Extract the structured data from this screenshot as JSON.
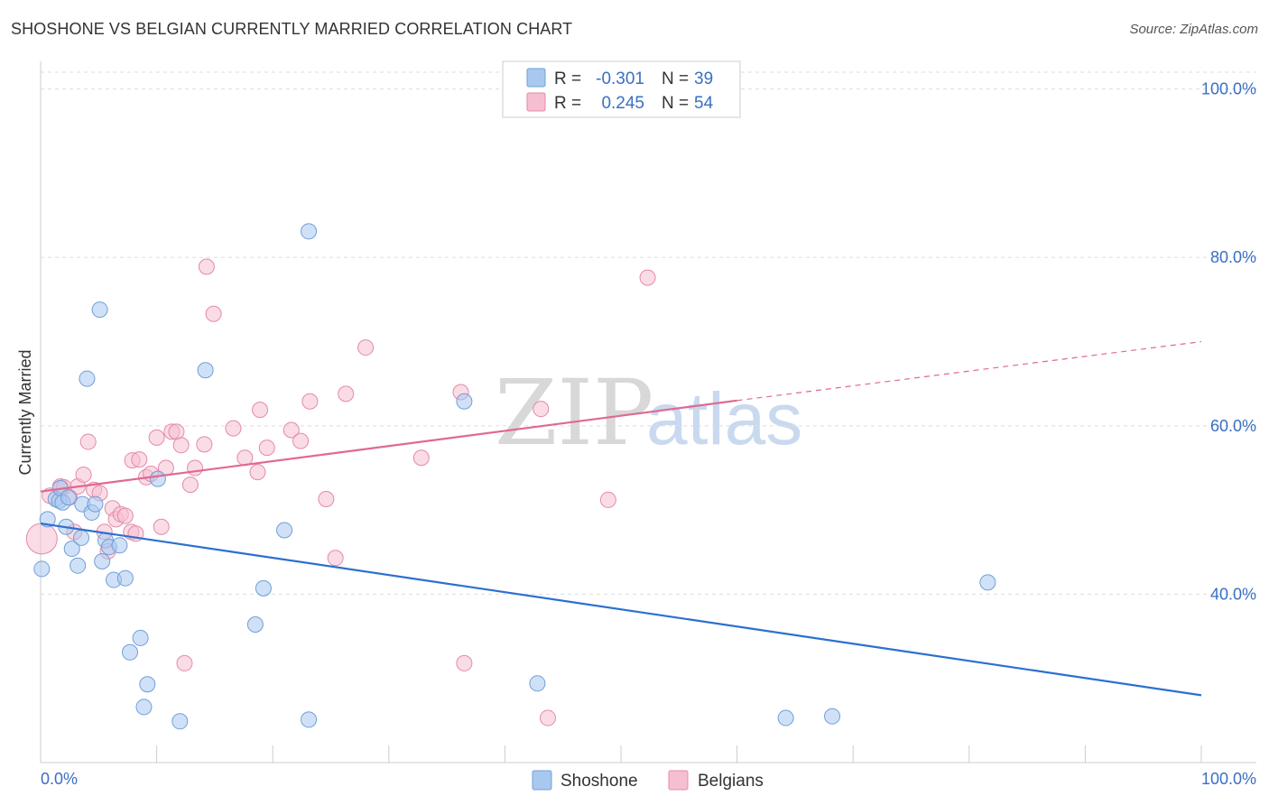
{
  "header": {
    "title": "SHOSHONE VS BELGIAN CURRENTLY MARRIED CORRELATION CHART",
    "source": "Source: ZipAtlas.com"
  },
  "watermark": {
    "zip": "ZIP",
    "atlas": "atlas"
  },
  "legend": {
    "rows": [
      {
        "r_label": "R =",
        "r_value": "-0.301",
        "n_label": "N =",
        "n_value": "39"
      },
      {
        "r_label": "R =",
        "r_value": "0.245",
        "n_label": "N =",
        "n_value": "54"
      }
    ]
  },
  "bottom_legend": {
    "shoshone": "Shoshone",
    "belgians": "Belgians"
  },
  "colors": {
    "shoshone_fill": "#a9c8f0",
    "shoshone_stroke": "#6f9fd8",
    "shoshone_line": "#2d6fcf",
    "belgian_fill": "#f6bfd1",
    "belgian_stroke": "#e48aa8",
    "belgian_line": "#e06990",
    "accent_text": "#3a6fc4"
  },
  "chart_data": {
    "type": "scatter",
    "title": "SHOSHONE VS BELGIAN CURRENTLY MARRIED CORRELATION CHART",
    "xlabel": "",
    "ylabel": "Currently Married",
    "xlim": [
      0,
      100
    ],
    "ylim": [
      20,
      102
    ],
    "x_tick_labels": [
      "0.0%",
      "100.0%"
    ],
    "y_ticks": [
      40,
      60,
      80,
      100
    ],
    "y_tick_labels": [
      "40.0%",
      "60.0%",
      "80.0%",
      "100.0%"
    ],
    "grid": true,
    "series": [
      {
        "name": "Shoshone",
        "r": -0.301,
        "n": 39,
        "trend": {
          "x": [
            0,
            100
          ],
          "y": [
            48.4,
            28.0
          ]
        },
        "points": [
          [
            0.6,
            48.9
          ],
          [
            1.3,
            51.3
          ],
          [
            1.6,
            51.1
          ],
          [
            1.7,
            52.6
          ],
          [
            1.9,
            50.9
          ],
          [
            2.2,
            48.0
          ],
          [
            2.4,
            51.5
          ],
          [
            2.7,
            45.4
          ],
          [
            3.2,
            43.4
          ],
          [
            3.5,
            46.7
          ],
          [
            3.6,
            50.7
          ],
          [
            4.0,
            65.6
          ],
          [
            4.4,
            49.7
          ],
          [
            4.7,
            50.7
          ],
          [
            5.1,
            73.8
          ],
          [
            5.3,
            43.9
          ],
          [
            5.6,
            46.4
          ],
          [
            5.9,
            45.6
          ],
          [
            6.3,
            41.7
          ],
          [
            6.8,
            45.8
          ],
          [
            7.3,
            41.9
          ],
          [
            7.7,
            33.1
          ],
          [
            8.6,
            34.8
          ],
          [
            8.9,
            26.6
          ],
          [
            9.2,
            29.3
          ],
          [
            10.1,
            53.7
          ],
          [
            12.0,
            24.9
          ],
          [
            14.2,
            66.6
          ],
          [
            18.5,
            36.4
          ],
          [
            19.2,
            40.7
          ],
          [
            21.0,
            47.6
          ],
          [
            23.1,
            83.1
          ],
          [
            23.1,
            25.1
          ],
          [
            36.5,
            62.9
          ],
          [
            42.8,
            29.4
          ],
          [
            64.2,
            25.3
          ],
          [
            68.2,
            25.5
          ],
          [
            81.6,
            41.4
          ],
          [
            0.1,
            43.0
          ]
        ]
      },
      {
        "name": "Belgians",
        "r": 0.245,
        "n": 54,
        "trend": {
          "x": [
            0,
            60
          ],
          "y": [
            52.2,
            63.0
          ]
        },
        "trend_dashed": {
          "x": [
            60,
            100
          ],
          "y": [
            63.0,
            70.0
          ]
        },
        "points": [
          [
            0.1,
            46.6
          ],
          [
            0.8,
            51.7
          ],
          [
            1.7,
            52.8
          ],
          [
            2.0,
            52.7
          ],
          [
            2.5,
            51.5
          ],
          [
            2.9,
            47.4
          ],
          [
            3.2,
            52.8
          ],
          [
            3.7,
            54.2
          ],
          [
            4.1,
            58.1
          ],
          [
            4.6,
            52.4
          ],
          [
            5.1,
            52.0
          ],
          [
            5.5,
            47.4
          ],
          [
            5.8,
            45.1
          ],
          [
            6.2,
            50.2
          ],
          [
            6.5,
            48.9
          ],
          [
            6.9,
            49.5
          ],
          [
            7.3,
            49.3
          ],
          [
            7.8,
            47.4
          ],
          [
            7.9,
            55.9
          ],
          [
            8.5,
            56.0
          ],
          [
            9.1,
            53.9
          ],
          [
            9.5,
            54.3
          ],
          [
            10.0,
            58.6
          ],
          [
            10.4,
            48.0
          ],
          [
            10.8,
            55.0
          ],
          [
            11.3,
            59.3
          ],
          [
            11.7,
            59.3
          ],
          [
            12.1,
            57.7
          ],
          [
            12.9,
            53.0
          ],
          [
            13.3,
            55.0
          ],
          [
            14.1,
            57.8
          ],
          [
            14.3,
            78.9
          ],
          [
            14.9,
            73.3
          ],
          [
            16.6,
            59.7
          ],
          [
            17.6,
            56.2
          ],
          [
            18.7,
            54.5
          ],
          [
            18.9,
            61.9
          ],
          [
            19.5,
            57.4
          ],
          [
            21.6,
            59.5
          ],
          [
            22.4,
            58.2
          ],
          [
            23.2,
            62.9
          ],
          [
            24.6,
            51.3
          ],
          [
            25.4,
            44.3
          ],
          [
            26.3,
            63.8
          ],
          [
            28.0,
            69.3
          ],
          [
            32.8,
            56.2
          ],
          [
            36.2,
            64.0
          ],
          [
            36.5,
            31.8
          ],
          [
            43.1,
            62.0
          ],
          [
            43.7,
            25.3
          ],
          [
            48.9,
            51.2
          ],
          [
            52.3,
            77.6
          ],
          [
            12.4,
            31.8
          ],
          [
            8.2,
            47.2
          ]
        ]
      }
    ]
  }
}
